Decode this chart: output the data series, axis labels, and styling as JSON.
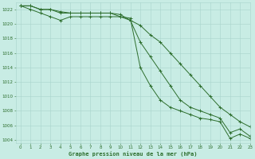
{
  "title": "Graphe pression niveau de la mer (hPa)",
  "bg_color": "#c8ece4",
  "grid_color": "#a8d4cc",
  "line_color": "#2d6e2d",
  "xlim": [
    -0.5,
    23
  ],
  "ylim": [
    1003.5,
    1023
  ],
  "yticks": [
    1004,
    1006,
    1008,
    1010,
    1012,
    1014,
    1016,
    1018,
    1020,
    1022
  ],
  "xticks": [
    0,
    1,
    2,
    3,
    4,
    5,
    6,
    7,
    8,
    9,
    10,
    11,
    12,
    13,
    14,
    15,
    16,
    17,
    18,
    19,
    20,
    21,
    22,
    23
  ],
  "line1_x": [
    0,
    1,
    2,
    3,
    4,
    5,
    6,
    7,
    8,
    9,
    10,
    11,
    12,
    13,
    14,
    15,
    16,
    17,
    18,
    19,
    20,
    21,
    22,
    23
  ],
  "line1_y": [
    1022.5,
    1022.5,
    1022.0,
    1022.0,
    1021.7,
    1021.5,
    1021.5,
    1021.5,
    1021.5,
    1021.5,
    1021.3,
    1020.5,
    1019.8,
    1018.5,
    1017.5,
    1016.0,
    1014.5,
    1013.0,
    1011.5,
    1010.0,
    1008.5,
    1007.5,
    1006.5,
    1005.8
  ],
  "line2_x": [
    0,
    1,
    2,
    3,
    4,
    5,
    6,
    7,
    8,
    9,
    10,
    11,
    12,
    13,
    14,
    15,
    16,
    17,
    18,
    19,
    20,
    21,
    22,
    23
  ],
  "line2_y": [
    1022.5,
    1022.5,
    1022.0,
    1022.0,
    1021.5,
    1021.5,
    1021.5,
    1021.5,
    1021.5,
    1021.5,
    1021.0,
    1020.5,
    1017.5,
    1015.5,
    1013.5,
    1011.5,
    1009.5,
    1008.5,
    1008.0,
    1007.5,
    1007.0,
    1005.0,
    1005.5,
    1004.5
  ],
  "line3_x": [
    0,
    1,
    2,
    3,
    4,
    5,
    6,
    7,
    8,
    9,
    10,
    11,
    12,
    13,
    14,
    15,
    16,
    17,
    18,
    19,
    20,
    21,
    22,
    23
  ],
  "line3_y": [
    1022.5,
    1022.0,
    1021.5,
    1021.0,
    1020.5,
    1021.0,
    1021.0,
    1021.0,
    1021.0,
    1021.0,
    1021.0,
    1020.8,
    1014.0,
    1011.5,
    1009.5,
    1008.5,
    1008.0,
    1007.5,
    1007.0,
    1006.8,
    1006.5,
    1004.2,
    1004.8,
    1004.2
  ]
}
